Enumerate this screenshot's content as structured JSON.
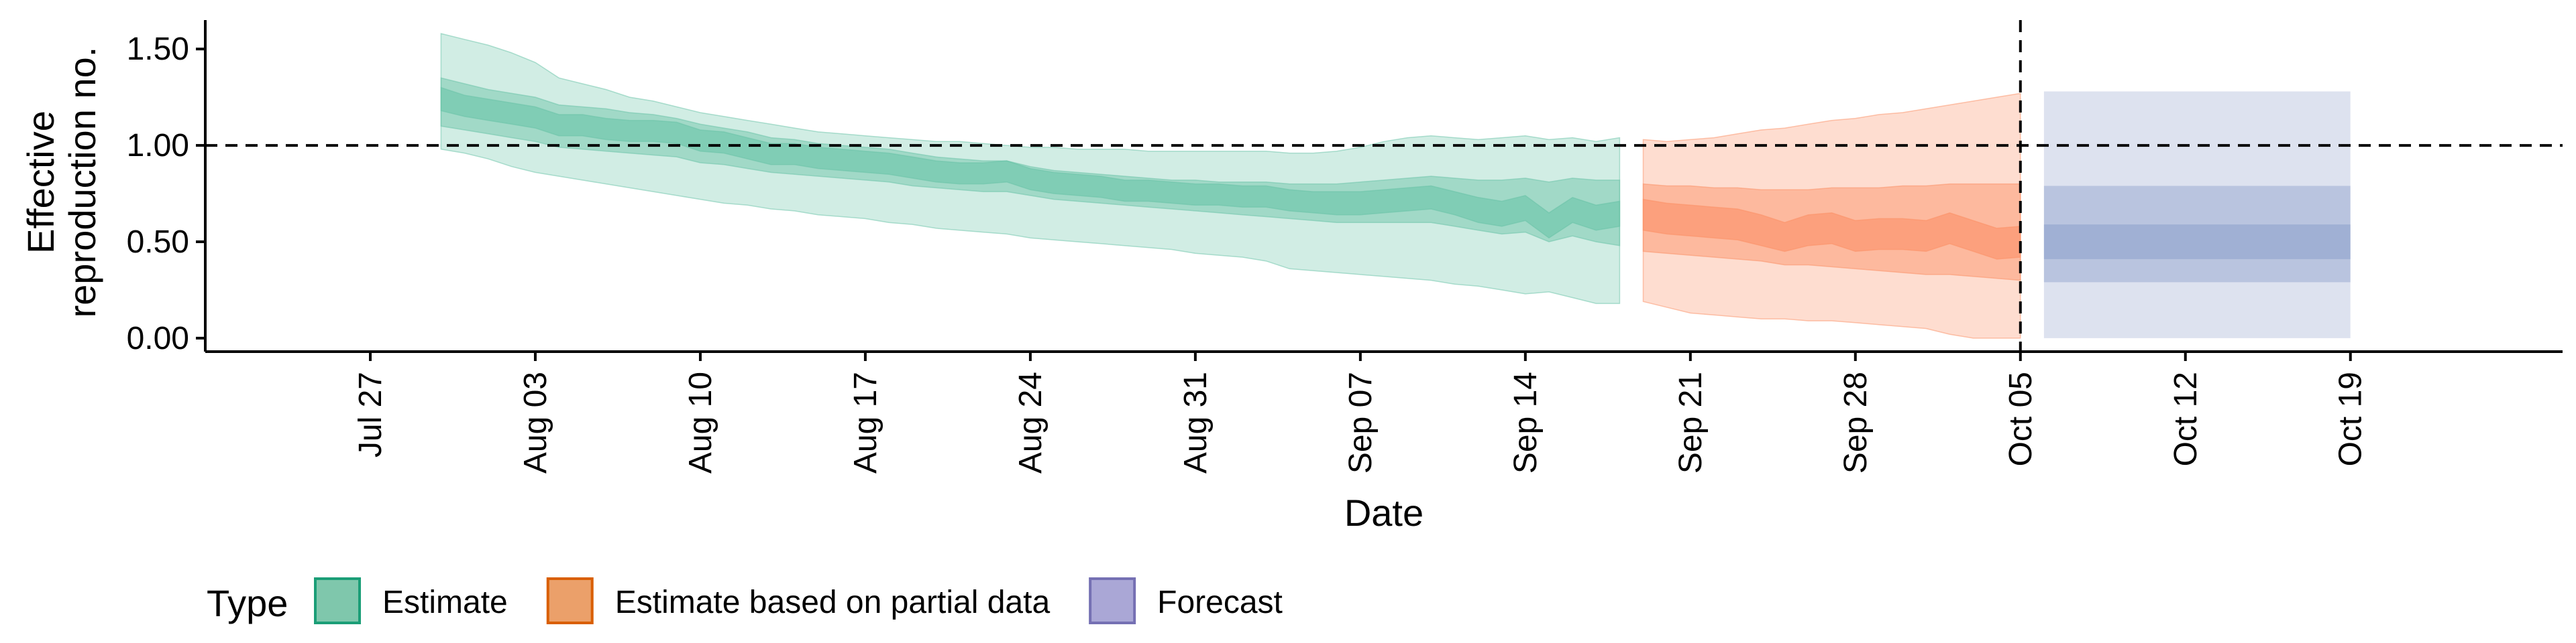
{
  "chart_data": {
    "type": "area",
    "xlabel": "Date",
    "ylabel_lines": [
      "Effective",
      "reproduction no."
    ],
    "x_ticks": [
      "Jul 27",
      "Aug 03",
      "Aug 10",
      "Aug 17",
      "Aug 24",
      "Aug 31",
      "Sep 07",
      "Sep 14",
      "Sep 21",
      "Sep 28",
      "Oct 05",
      "Oct 12",
      "Oct 19"
    ],
    "y_ticks": [
      "0.00",
      "0.50",
      "1.00",
      "1.50"
    ],
    "ylim": [
      -0.07,
      1.65
    ],
    "reference_line_y": 1.0,
    "vertical_line_date": "2020-10-05",
    "legend_title": "Type",
    "legend_position": "bottom-left",
    "legend": [
      {
        "label": "Estimate",
        "fill": "#7fc7ac",
        "border": "#1b9e77"
      },
      {
        "label": "Estimate based on partial data",
        "fill": "#eba06a",
        "border": "#d95f02"
      },
      {
        "label": "Forecast",
        "fill": "#aaa7d6",
        "border": "#7570b3"
      }
    ],
    "series": [
      {
        "name": "Estimate",
        "color": "#66c2a5",
        "start_date": "2020-07-30",
        "end_date": "2020-09-18",
        "median": [
          1.24,
          1.2,
          1.18,
          1.16,
          1.14,
          1.1,
          1.1,
          1.08,
          1.07,
          1.07,
          1.06,
          1.02,
          1.01,
          0.98,
          0.95,
          0.95,
          0.93,
          0.92,
          0.91,
          0.9,
          0.88,
          0.86,
          0.85,
          0.85,
          0.86,
          0.82,
          0.8,
          0.79,
          0.78,
          0.76,
          0.76,
          0.75,
          0.74,
          0.74,
          0.73,
          0.73,
          0.71,
          0.7,
          0.7,
          0.7,
          0.71,
          0.72,
          0.73,
          0.7,
          0.66,
          0.64,
          0.67,
          0.58,
          0.66,
          0.62,
          0.64
        ],
        "inner_lower": [
          1.18,
          1.15,
          1.13,
          1.11,
          1.09,
          1.05,
          1.05,
          1.03,
          1.02,
          1.02,
          1.01,
          0.97,
          0.96,
          0.93,
          0.9,
          0.9,
          0.88,
          0.87,
          0.86,
          0.85,
          0.83,
          0.81,
          0.8,
          0.8,
          0.81,
          0.77,
          0.75,
          0.74,
          0.73,
          0.71,
          0.71,
          0.7,
          0.69,
          0.69,
          0.68,
          0.68,
          0.66,
          0.65,
          0.64,
          0.64,
          0.65,
          0.66,
          0.67,
          0.64,
          0.6,
          0.58,
          0.61,
          0.52,
          0.6,
          0.56,
          0.58
        ],
        "inner_upper": [
          1.3,
          1.26,
          1.24,
          1.22,
          1.2,
          1.16,
          1.16,
          1.14,
          1.13,
          1.13,
          1.12,
          1.08,
          1.07,
          1.04,
          1.01,
          1.01,
          0.99,
          0.98,
          0.97,
          0.96,
          0.94,
          0.92,
          0.91,
          0.91,
          0.92,
          0.88,
          0.86,
          0.85,
          0.84,
          0.82,
          0.82,
          0.81,
          0.8,
          0.8,
          0.79,
          0.79,
          0.77,
          0.76,
          0.76,
          0.76,
          0.77,
          0.78,
          0.79,
          0.76,
          0.73,
          0.71,
          0.74,
          0.65,
          0.73,
          0.69,
          0.71
        ],
        "mid_lower": [
          1.1,
          1.08,
          1.06,
          1.04,
          1.02,
          0.99,
          0.98,
          0.97,
          0.96,
          0.95,
          0.94,
          0.91,
          0.9,
          0.88,
          0.86,
          0.85,
          0.84,
          0.83,
          0.82,
          0.81,
          0.79,
          0.78,
          0.77,
          0.76,
          0.76,
          0.74,
          0.72,
          0.71,
          0.7,
          0.69,
          0.68,
          0.67,
          0.66,
          0.65,
          0.64,
          0.63,
          0.62,
          0.61,
          0.6,
          0.6,
          0.6,
          0.6,
          0.6,
          0.58,
          0.56,
          0.54,
          0.55,
          0.5,
          0.53,
          0.5,
          0.48
        ],
        "mid_upper": [
          1.35,
          1.32,
          1.29,
          1.27,
          1.25,
          1.21,
          1.2,
          1.19,
          1.17,
          1.16,
          1.14,
          1.11,
          1.09,
          1.07,
          1.04,
          1.03,
          1.01,
          1.0,
          0.99,
          0.98,
          0.96,
          0.94,
          0.93,
          0.92,
          0.92,
          0.89,
          0.87,
          0.86,
          0.85,
          0.84,
          0.83,
          0.82,
          0.82,
          0.81,
          0.81,
          0.81,
          0.8,
          0.8,
          0.8,
          0.81,
          0.82,
          0.83,
          0.84,
          0.83,
          0.82,
          0.82,
          0.83,
          0.81,
          0.83,
          0.82,
          0.82
        ],
        "outer_lower": [
          0.98,
          0.96,
          0.93,
          0.89,
          0.86,
          0.84,
          0.82,
          0.8,
          0.78,
          0.76,
          0.74,
          0.72,
          0.7,
          0.69,
          0.67,
          0.66,
          0.64,
          0.63,
          0.62,
          0.6,
          0.59,
          0.57,
          0.56,
          0.55,
          0.54,
          0.52,
          0.51,
          0.5,
          0.49,
          0.48,
          0.47,
          0.46,
          0.44,
          0.43,
          0.42,
          0.4,
          0.36,
          0.35,
          0.34,
          0.33,
          0.32,
          0.31,
          0.3,
          0.28,
          0.27,
          0.25,
          0.23,
          0.24,
          0.21,
          0.18,
          0.18
        ],
        "outer_upper": [
          1.58,
          1.55,
          1.52,
          1.48,
          1.43,
          1.35,
          1.32,
          1.29,
          1.25,
          1.23,
          1.2,
          1.17,
          1.15,
          1.13,
          1.11,
          1.09,
          1.07,
          1.06,
          1.05,
          1.04,
          1.03,
          1.02,
          1.02,
          1.01,
          1.0,
          0.99,
          0.99,
          0.98,
          0.98,
          0.98,
          0.97,
          0.97,
          0.97,
          0.97,
          0.97,
          0.97,
          0.96,
          0.96,
          0.97,
          0.99,
          1.02,
          1.04,
          1.05,
          1.04,
          1.03,
          1.04,
          1.05,
          1.03,
          1.04,
          1.02,
          1.04
        ]
      },
      {
        "name": "Estimate based on partial data",
        "color": "#fc8d62",
        "start_date": "2020-09-19",
        "end_date": "2020-10-05",
        "median": [
          0.64,
          0.62,
          0.61,
          0.6,
          0.59,
          0.56,
          0.52,
          0.56,
          0.57,
          0.53,
          0.54,
          0.54,
          0.53,
          0.57,
          0.53,
          0.49,
          0.5
        ],
        "inner_lower": [
          0.56,
          0.54,
          0.53,
          0.52,
          0.51,
          0.48,
          0.45,
          0.48,
          0.49,
          0.45,
          0.46,
          0.46,
          0.45,
          0.49,
          0.45,
          0.41,
          0.42
        ],
        "inner_upper": [
          0.72,
          0.7,
          0.69,
          0.68,
          0.67,
          0.64,
          0.6,
          0.64,
          0.65,
          0.61,
          0.62,
          0.62,
          0.61,
          0.65,
          0.61,
          0.57,
          0.58
        ],
        "mid_lower": [
          0.45,
          0.44,
          0.43,
          0.42,
          0.41,
          0.4,
          0.38,
          0.38,
          0.37,
          0.36,
          0.35,
          0.34,
          0.33,
          0.33,
          0.32,
          0.31,
          0.3
        ],
        "mid_upper": [
          0.8,
          0.79,
          0.79,
          0.78,
          0.78,
          0.77,
          0.77,
          0.77,
          0.78,
          0.78,
          0.78,
          0.79,
          0.79,
          0.8,
          0.8,
          0.8,
          0.8
        ],
        "outer_lower": [
          0.19,
          0.16,
          0.13,
          0.12,
          0.11,
          0.1,
          0.1,
          0.09,
          0.09,
          0.08,
          0.07,
          0.06,
          0.05,
          0.02,
          0.0,
          0.0,
          0.0
        ],
        "outer_upper": [
          1.03,
          1.02,
          1.03,
          1.04,
          1.06,
          1.08,
          1.09,
          1.11,
          1.13,
          1.14,
          1.16,
          1.17,
          1.19,
          1.21,
          1.23,
          1.25,
          1.27
        ]
      },
      {
        "name": "Forecast",
        "color": "#8da0cb",
        "start_date": "2020-10-06",
        "end_date": "2020-10-19",
        "median": [
          0.5,
          0.5
        ],
        "inner_lower": [
          0.41,
          0.41
        ],
        "inner_upper": [
          0.59,
          0.59
        ],
        "mid_lower": [
          0.29,
          0.29
        ],
        "mid_upper": [
          0.79,
          0.79
        ],
        "outer_lower": [
          0.0,
          0.0
        ],
        "outer_upper": [
          1.28,
          1.28
        ]
      }
    ]
  }
}
